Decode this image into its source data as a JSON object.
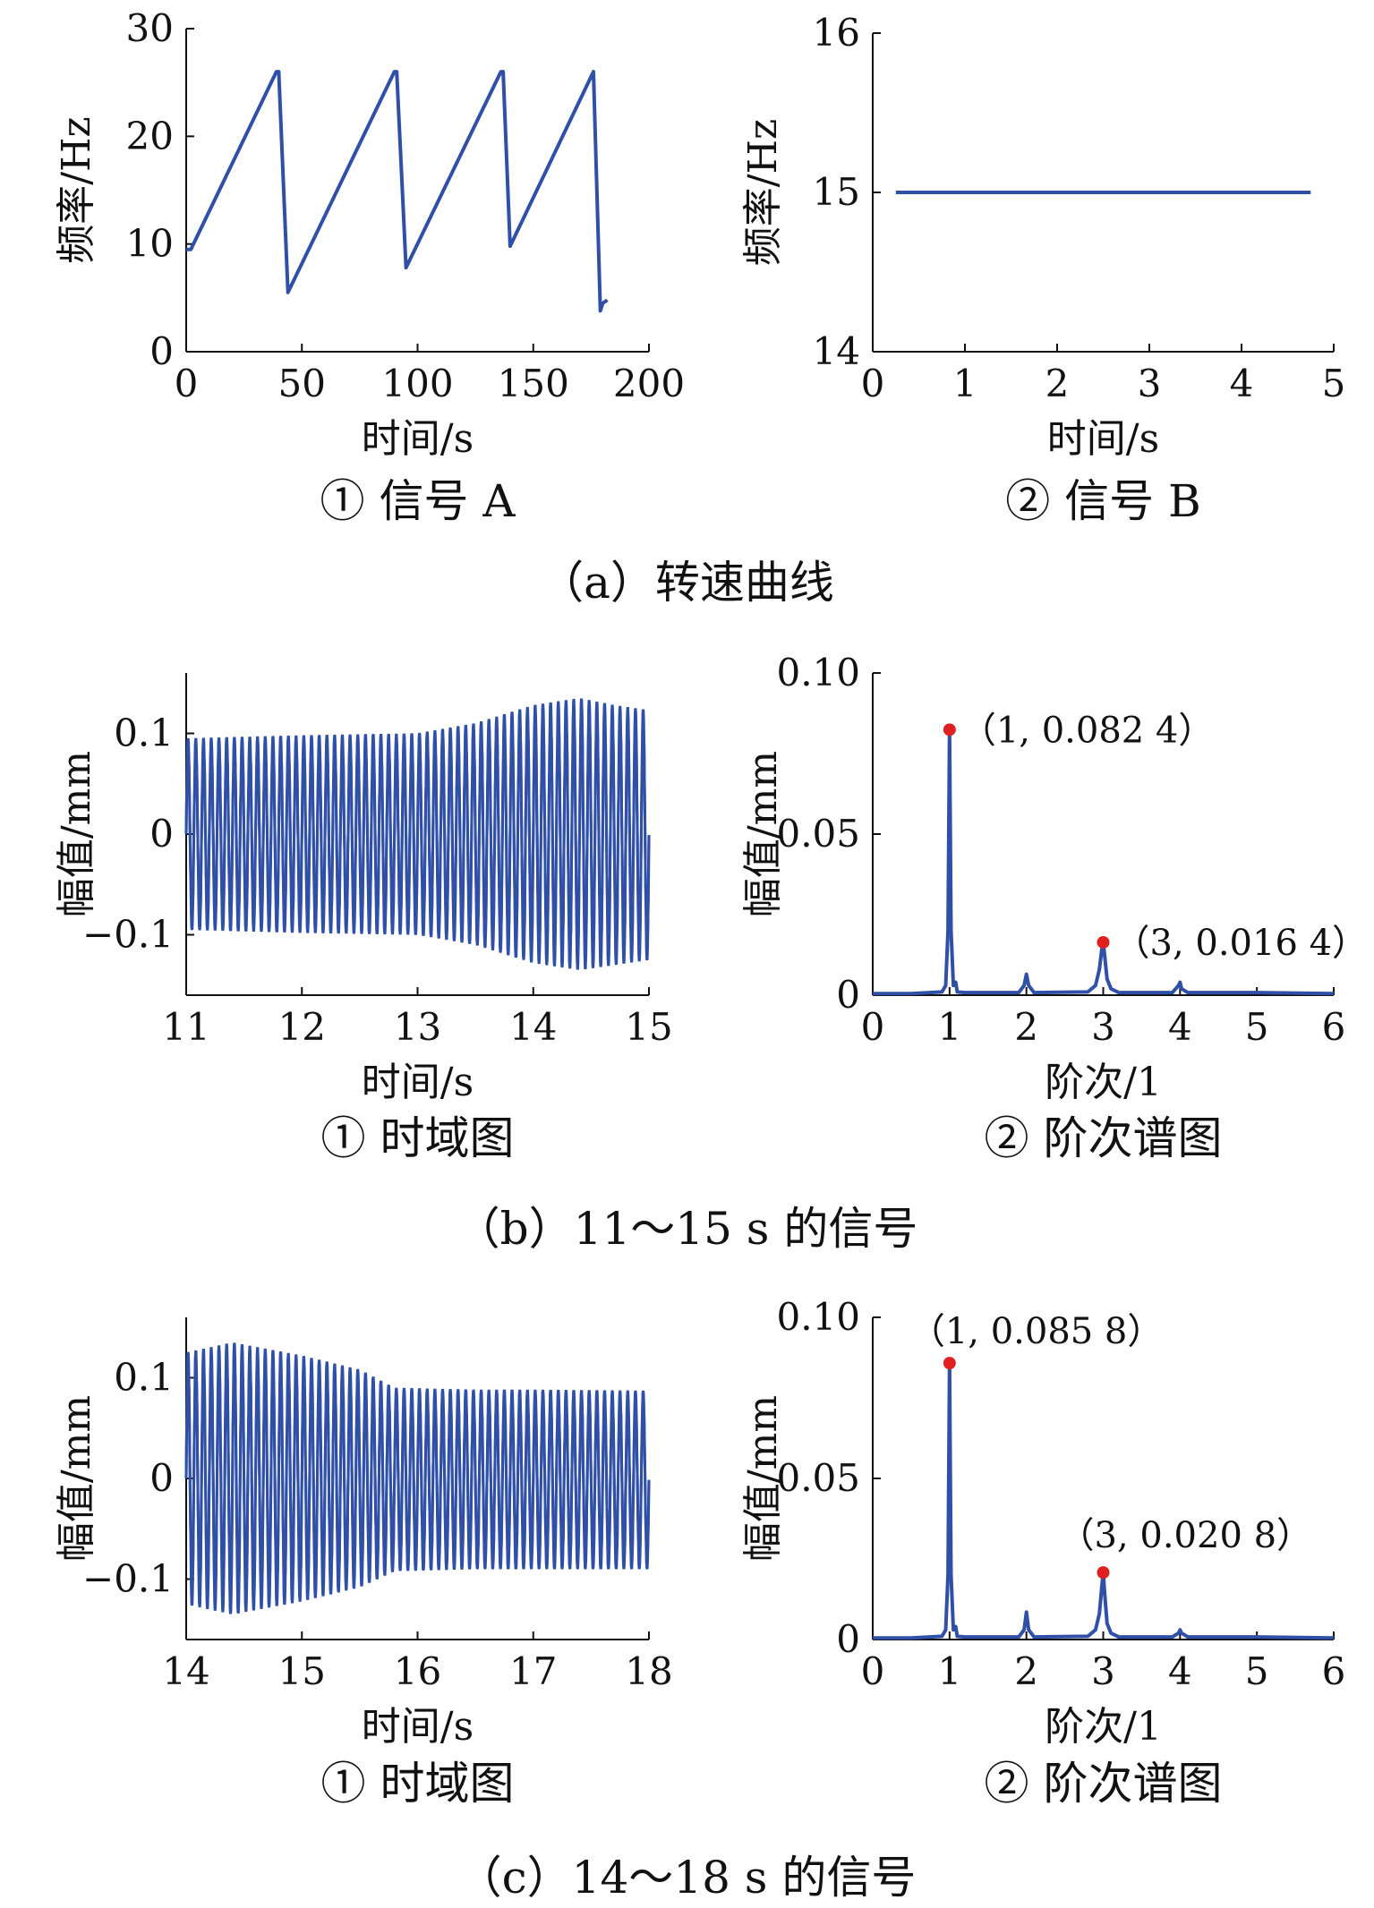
{
  "colors": {
    "line": "#3050A8",
    "marker": "#E02020",
    "axis": "#111111"
  },
  "chart_data": [
    {
      "id": "a1",
      "type": "line",
      "xlabel": "时间/s",
      "ylabel": "频率/Hz",
      "xlim": [
        0,
        200
      ],
      "ylim": [
        0,
        30
      ],
      "xticks": [
        "0",
        "50",
        "100",
        "150",
        "200"
      ],
      "yticks": [
        "0",
        "10",
        "20",
        "30"
      ],
      "series": [
        {
          "x": [
            0,
            2,
            39,
            40,
            44,
            90,
            91,
            95,
            136,
            137,
            140,
            176,
            179,
            180,
            182
          ],
          "y": [
            9.5,
            9.5,
            26,
            26,
            5.5,
            26,
            26,
            7.8,
            26,
            26,
            9.8,
            26,
            3.8,
            4.5,
            4.8
          ]
        }
      ],
      "caption": "① 信号 A"
    },
    {
      "id": "a2",
      "type": "line",
      "xlabel": "时间/s",
      "ylabel": "频率/Hz",
      "xlim": [
        0,
        5
      ],
      "ylim": [
        14,
        16
      ],
      "xticks": [
        "0",
        "1",
        "2",
        "3",
        "4",
        "5"
      ],
      "yticks": [
        "14",
        "15",
        "16"
      ],
      "series": [
        {
          "x": [
            0.25,
            4.75
          ],
          "y": [
            15,
            15
          ]
        }
      ],
      "caption": "② 信号 B"
    },
    {
      "id": "b1",
      "type": "line",
      "xlabel": "时间/s",
      "ylabel": "幅值/mm",
      "xlim": [
        11,
        15
      ],
      "ylim": [
        -0.16,
        0.16
      ],
      "xticks": [
        "11",
        "12",
        "13",
        "14",
        "15"
      ],
      "yticks": [
        "−0.1",
        "0",
        "0.1"
      ],
      "yticks_values": [
        -0.1,
        0,
        0.1
      ],
      "envelope": {
        "t": [
          11,
          12,
          13,
          13.5,
          14,
          14.4,
          14.7,
          15
        ],
        "upper": [
          0.095,
          0.098,
          0.1,
          0.11,
          0.128,
          0.135,
          0.128,
          0.123
        ],
        "lower": [
          -0.095,
          -0.098,
          -0.1,
          -0.11,
          -0.128,
          -0.135,
          -0.13,
          -0.125
        ]
      },
      "frequency_per_s": 15,
      "caption": "① 时域图"
    },
    {
      "id": "b2",
      "type": "line",
      "xlabel": "阶次/1",
      "ylabel": "幅值/mm",
      "xlim": [
        0,
        6
      ],
      "ylim": [
        0,
        0.1
      ],
      "xticks": [
        "0",
        "1",
        "2",
        "3",
        "4",
        "5",
        "6"
      ],
      "yticks": [
        "0",
        "0.05",
        "0.10"
      ],
      "series": [
        {
          "x": [
            0,
            0.5,
            0.9,
            0.95,
            0.98,
            1.0,
            1.02,
            1.05,
            1.08,
            1.1,
            1.2,
            1.9,
            1.97,
            2.0,
            2.03,
            2.1,
            2.8,
            2.9,
            2.95,
            2.98,
            3.0,
            3.02,
            3.05,
            3.1,
            3.2,
            3.9,
            3.98,
            4.0,
            4.02,
            4.1,
            5.0,
            6.0
          ],
          "y": [
            0.0005,
            0.0005,
            0.001,
            0.003,
            0.02,
            0.0824,
            0.02,
            0.003,
            0.004,
            0.001,
            0.0008,
            0.0008,
            0.003,
            0.0065,
            0.003,
            0.0008,
            0.001,
            0.003,
            0.008,
            0.014,
            0.0164,
            0.012,
            0.005,
            0.002,
            0.0008,
            0.0008,
            0.003,
            0.004,
            0.002,
            0.0008,
            0.0008,
            0.0005
          ]
        }
      ],
      "markers": [
        {
          "x": 1,
          "y": 0.0824,
          "label": "（1, 0.082 4）"
        },
        {
          "x": 3,
          "y": 0.0164,
          "label": "（3, 0.016 4）"
        }
      ],
      "caption": "② 阶次谱图"
    },
    {
      "id": "c1",
      "type": "line",
      "xlabel": "时间/s",
      "ylabel": "幅值/mm",
      "xlim": [
        14,
        18
      ],
      "ylim": [
        -0.16,
        0.16
      ],
      "xticks": [
        "14",
        "15",
        "16",
        "17",
        "18"
      ],
      "yticks": [
        "−0.1",
        "0",
        "0.1"
      ],
      "yticks_values": [
        -0.1,
        0,
        0.1
      ],
      "envelope": {
        "t": [
          14,
          14.4,
          15,
          15.5,
          15.8,
          16.5,
          17,
          18
        ],
        "upper": [
          0.125,
          0.135,
          0.122,
          0.108,
          0.09,
          0.088,
          0.088,
          0.087
        ],
        "lower": [
          -0.125,
          -0.135,
          -0.122,
          -0.108,
          -0.092,
          -0.09,
          -0.09,
          -0.09
        ]
      },
      "frequency_per_s": 15,
      "caption": "① 时域图"
    },
    {
      "id": "c2",
      "type": "line",
      "xlabel": "阶次/1",
      "ylabel": "幅值/mm",
      "xlim": [
        0,
        6
      ],
      "ylim": [
        0,
        0.1
      ],
      "xticks": [
        "0",
        "1",
        "2",
        "3",
        "4",
        "5",
        "6"
      ],
      "yticks": [
        "0",
        "0.05",
        "0.10"
      ],
      "series": [
        {
          "x": [
            0,
            0.5,
            0.9,
            0.95,
            0.98,
            1.0,
            1.02,
            1.05,
            1.08,
            1.1,
            1.2,
            1.9,
            1.97,
            2.0,
            2.03,
            2.1,
            2.8,
            2.9,
            2.95,
            2.98,
            3.0,
            3.02,
            3.05,
            3.1,
            3.2,
            3.9,
            3.98,
            4.0,
            4.02,
            4.1,
            5.0,
            6.0
          ],
          "y": [
            0.0005,
            0.0005,
            0.001,
            0.003,
            0.02,
            0.0858,
            0.02,
            0.003,
            0.004,
            0.001,
            0.0008,
            0.0008,
            0.003,
            0.0085,
            0.003,
            0.0008,
            0.001,
            0.003,
            0.008,
            0.016,
            0.0208,
            0.014,
            0.005,
            0.002,
            0.0008,
            0.0008,
            0.002,
            0.003,
            0.002,
            0.0008,
            0.0008,
            0.0005
          ]
        }
      ],
      "markers": [
        {
          "x": 1,
          "y": 0.0858,
          "label": "（1, 0.085 8）"
        },
        {
          "x": 3,
          "y": 0.0208,
          "label": "（3, 0.020 8）"
        }
      ],
      "caption": "② 阶次谱图"
    }
  ],
  "row_captions": [
    "（a）转速曲线",
    "（b）11～15 s 的信号",
    "（c）14～18 s 的信号"
  ]
}
